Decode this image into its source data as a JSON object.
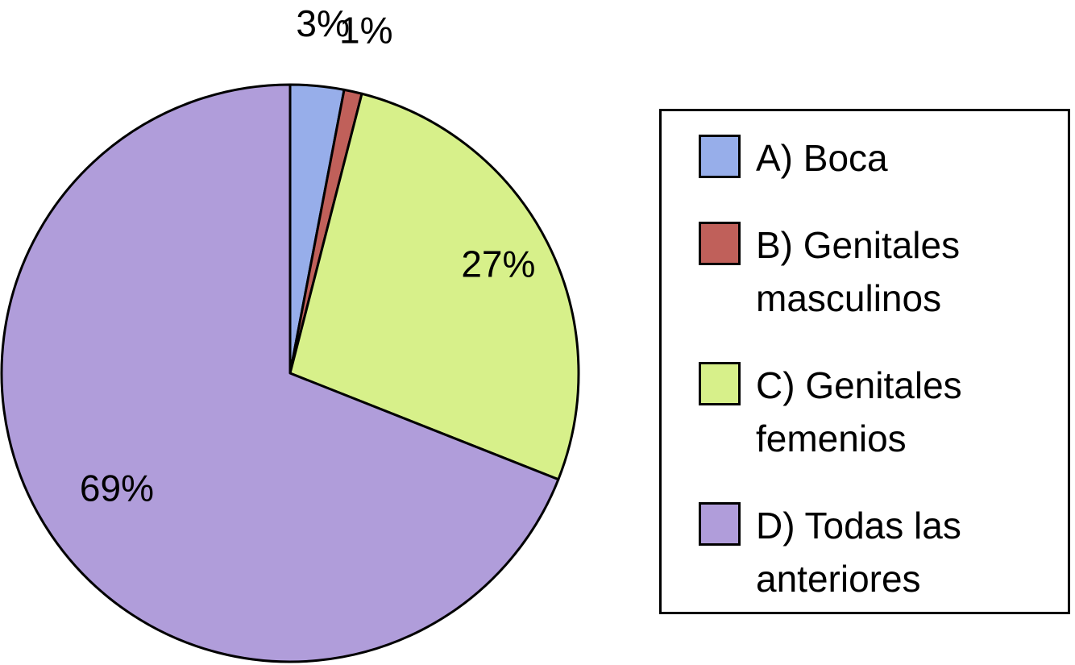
{
  "chart_data": {
    "type": "pie",
    "categories": [
      "A) Boca",
      "B) Genitales masculinos",
      "C) Genitales femenios",
      "D) Todas las anteriores"
    ],
    "values": [
      3,
      1,
      27,
      69
    ],
    "value_labels": [
      "3%",
      "1%",
      "27%",
      "69%"
    ],
    "colors": [
      "#97aeea",
      "#c0605a",
      "#d7f08a",
      "#b09dda"
    ]
  }
}
